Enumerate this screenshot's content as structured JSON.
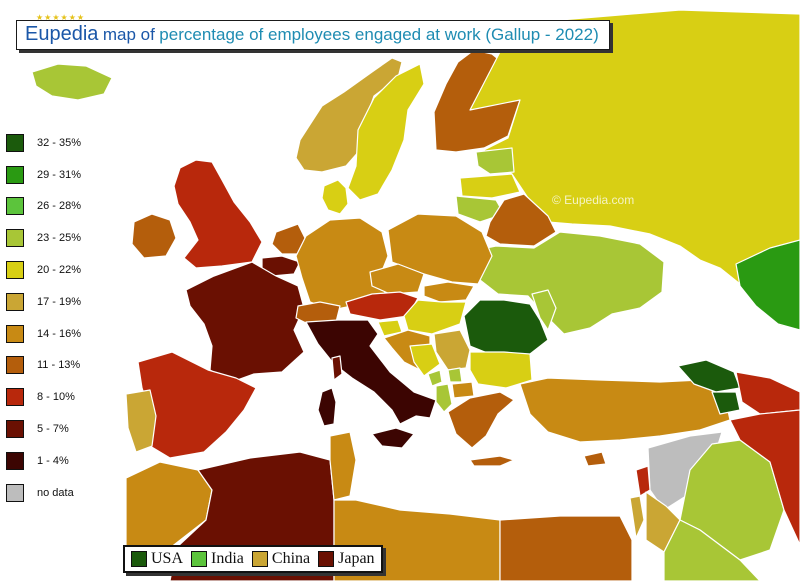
{
  "title": {
    "brand": "Eupedia",
    "text_before": "map of",
    "text_highlight": "percentage of employees engaged at work (Gallup - 2022)"
  },
  "legend": [
    {
      "label": "32 - 35%",
      "color": "#1b5a0c"
    },
    {
      "label": "29 - 31%",
      "color": "#2a9a12"
    },
    {
      "label": "26 - 28%",
      "color": "#5cc43c"
    },
    {
      "label": "23 - 25%",
      "color": "#a8c636"
    },
    {
      "label": "20 - 22%",
      "color": "#d8cf14"
    },
    {
      "label": "17 - 19%",
      "color": "#caa634"
    },
    {
      "label": "14 - 16%",
      "color": "#c88a14"
    },
    {
      "label": "11 - 13%",
      "color": "#b45e0c"
    },
    {
      "label": "8 - 10%",
      "color": "#b8280c"
    },
    {
      "label": "5 - 7%",
      "color": "#6a1002"
    },
    {
      "label": "1 - 4%",
      "color": "#3c0502"
    },
    {
      "label": "no data",
      "color": "#bdbdbd"
    }
  ],
  "watermarks": [
    "© Eupedia.com",
    "© Eupedia.com"
  ],
  "comparison": [
    {
      "label": "USA",
      "color": "#1b5a0c"
    },
    {
      "label": "India",
      "color": "#5cc43c"
    },
    {
      "label": "China",
      "color": "#caa634"
    },
    {
      "label": "Japan",
      "color": "#6a1002"
    }
  ],
  "regions": [
    {
      "name": "Iceland",
      "color": "#a8c636"
    },
    {
      "name": "Norway",
      "color": "#caa634"
    },
    {
      "name": "Sweden",
      "color": "#d8cf14"
    },
    {
      "name": "Finland",
      "color": "#b45e0c"
    },
    {
      "name": "Russia",
      "color": "#d8cf14"
    },
    {
      "name": "Estonia",
      "color": "#a8c636"
    },
    {
      "name": "Latvia",
      "color": "#d8cf14"
    },
    {
      "name": "Lithuania",
      "color": "#a8c636"
    },
    {
      "name": "Belarus",
      "color": "#b45e0c"
    },
    {
      "name": "Ukraine",
      "color": "#a8c636"
    },
    {
      "name": "Denmark",
      "color": "#d8cf14"
    },
    {
      "name": "UK",
      "color": "#b8280c"
    },
    {
      "name": "Ireland",
      "color": "#b45e0c"
    },
    {
      "name": "Netherlands",
      "color": "#b45e0c"
    },
    {
      "name": "Belgium",
      "color": "#6a1002"
    },
    {
      "name": "France",
      "color": "#6a1002"
    },
    {
      "name": "Germany",
      "color": "#c88a14"
    },
    {
      "name": "Poland",
      "color": "#c88a14"
    },
    {
      "name": "Czechia",
      "color": "#c88a14"
    },
    {
      "name": "Slovakia",
      "color": "#c88a14"
    },
    {
      "name": "Austria",
      "color": "#b8280c"
    },
    {
      "name": "Switzerland",
      "color": "#b45e0c"
    },
    {
      "name": "Hungary",
      "color": "#d8cf14"
    },
    {
      "name": "Romania",
      "color": "#1b5a0c"
    },
    {
      "name": "Moldova",
      "color": "#a8c636"
    },
    {
      "name": "Italy",
      "color": "#3c0502"
    },
    {
      "name": "Sardinia",
      "color": "#3c0502"
    },
    {
      "name": "Corsica",
      "color": "#6a1002"
    },
    {
      "name": "Sicily",
      "color": "#3c0502"
    },
    {
      "name": "Spain",
      "color": "#b8280c"
    },
    {
      "name": "Portugal",
      "color": "#caa634"
    },
    {
      "name": "Slovenia",
      "color": "#d8cf14"
    },
    {
      "name": "Croatia",
      "color": "#c88a14"
    },
    {
      "name": "Bosnia",
      "color": "#d8cf14"
    },
    {
      "name": "Serbia",
      "color": "#caa634"
    },
    {
      "name": "Montenegro",
      "color": "#a8c636"
    },
    {
      "name": "Kosovo",
      "color": "#a8c636"
    },
    {
      "name": "Albania",
      "color": "#a8c636"
    },
    {
      "name": "North Macedonia",
      "color": "#c88a14"
    },
    {
      "name": "Bulgaria",
      "color": "#d8cf14"
    },
    {
      "name": "Greece",
      "color": "#b45e0c"
    },
    {
      "name": "Crete",
      "color": "#b45e0c"
    },
    {
      "name": "Turkey",
      "color": "#c88a14"
    },
    {
      "name": "Cyprus",
      "color": "#b45e0c"
    },
    {
      "name": "Georgia",
      "color": "#1b5a0c"
    },
    {
      "name": "Armenia",
      "color": "#1b5a0c"
    },
    {
      "name": "Azerbaijan",
      "color": "#b8280c"
    },
    {
      "name": "Kazakhstan",
      "color": "#2a9a12"
    },
    {
      "name": "Syria",
      "color": "#bdbdbd"
    },
    {
      "name": "Lebanon",
      "color": "#b8280c"
    },
    {
      "name": "Israel",
      "color": "#caa634"
    },
    {
      "name": "Jordan",
      "color": "#caa634"
    },
    {
      "name": "Iraq",
      "color": "#a8c636"
    },
    {
      "name": "Iran",
      "color": "#b8280c"
    },
    {
      "name": "Saudi Arabia",
      "color": "#a8c636"
    },
    {
      "name": "Morocco",
      "color": "#c88a14"
    },
    {
      "name": "Algeria",
      "color": "#6a1002"
    },
    {
      "name": "Tunisia",
      "color": "#c88a14"
    },
    {
      "name": "Libya",
      "color": "#c88a14"
    },
    {
      "name": "Egypt",
      "color": "#b45e0c"
    }
  ]
}
